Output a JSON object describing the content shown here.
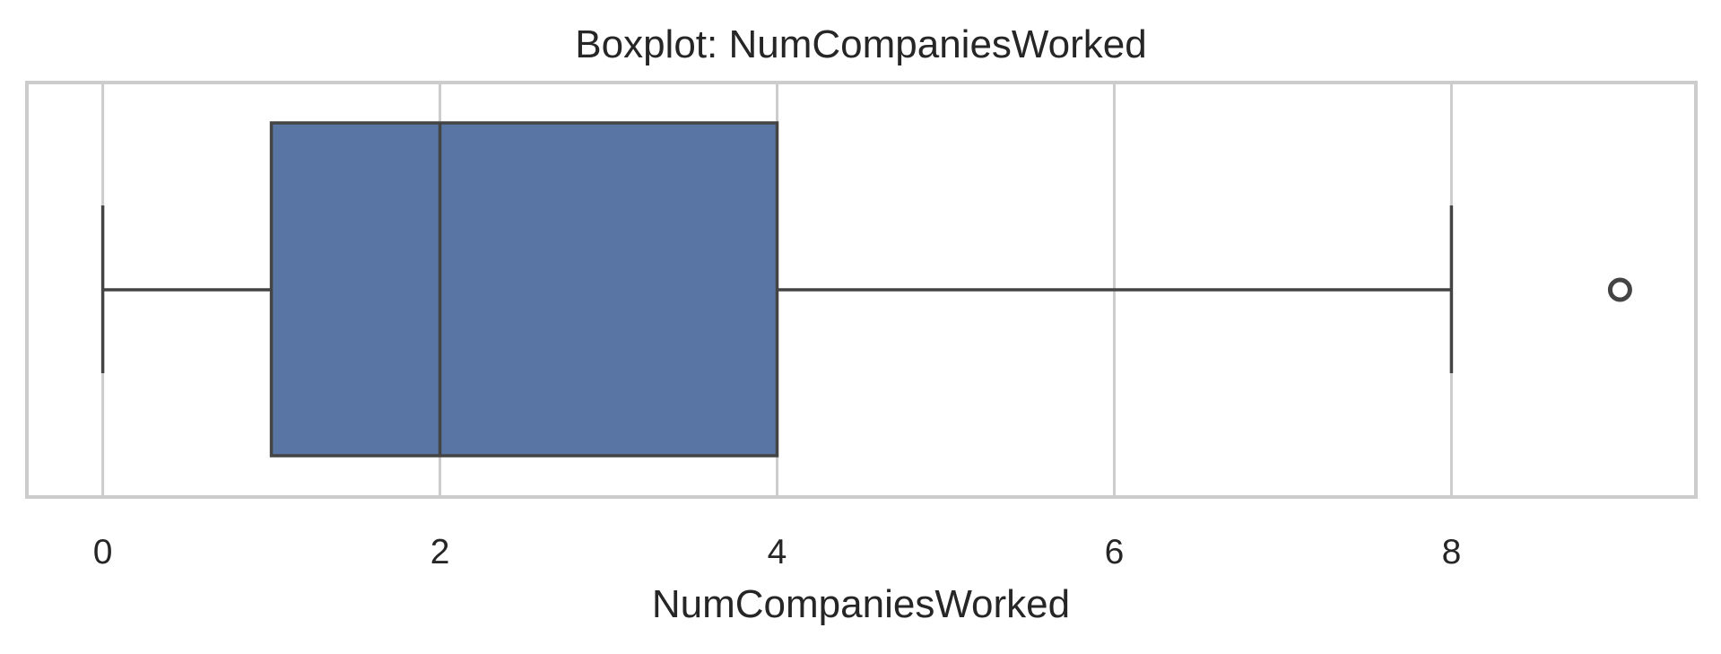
{
  "chart_data": {
    "type": "box",
    "title": "Boxplot: NumCompaniesWorked",
    "xlabel": "NumCompaniesWorked",
    "ylabel": "",
    "xlim": [
      -0.45,
      9.45
    ],
    "xticks": [
      0,
      2,
      4,
      6,
      8
    ],
    "grid": true,
    "orientation": "horizontal",
    "box": {
      "whisker_low": 0,
      "q1": 1,
      "median": 2,
      "q3": 4,
      "whisker_high": 8,
      "outliers": [
        9
      ]
    },
    "colors": {
      "box_fill": "#5975a4",
      "line": "#444444",
      "grid": "#cccccc"
    }
  }
}
